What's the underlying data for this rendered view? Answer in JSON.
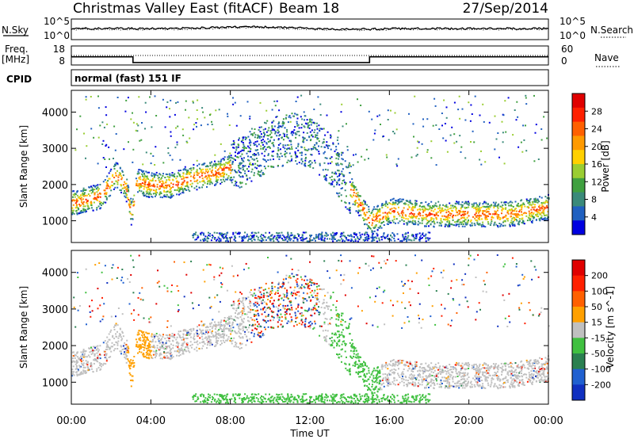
{
  "header": {
    "title": "Christmas Valley East (fitACF)",
    "beam": "Beam 18",
    "date": "27/Sep/2014"
  },
  "nsky_panel": {
    "left_label": "N.Sky",
    "right_label": "N.Search",
    "left_ticks": [
      "10^5",
      "10^0"
    ],
    "right_ticks": [
      "10^5",
      "10^0"
    ]
  },
  "freq_panel": {
    "left_label_1": "Freq.",
    "left_label_2": "[MHz]",
    "right_label": "Nave",
    "left_ticks": [
      "18",
      "8"
    ],
    "right_ticks": [
      "60",
      "0"
    ],
    "freq_mhz": [
      {
        "t": 0.0,
        "f": 12.3
      },
      {
        "t": 3.1,
        "f": 12.3
      },
      {
        "t": 3.1,
        "f": 9.3
      },
      {
        "t": 15.0,
        "f": 9.3
      },
      {
        "t": 15.0,
        "f": 12.3
      },
      {
        "t": 24.0,
        "f": 12.3
      }
    ]
  },
  "cpid": {
    "label": "CPID",
    "value": "normal (fast) 151 IF"
  },
  "chart_data": [
    {
      "type": "heatmap",
      "ylabel": "Slant Range [km]",
      "y_ticks": [
        "1000",
        "2000",
        "3000",
        "4000"
      ],
      "ylim": [
        400,
        4600
      ],
      "xlim": [
        0,
        24
      ],
      "colorbar": {
        "label": "Power [dB]",
        "ticks": [
          "4",
          "8",
          "12",
          "16",
          "20",
          "24",
          "28"
        ],
        "colors": [
          "#0000e0",
          "#2060c0",
          "#3a8a7a",
          "#40a040",
          "#9acd32",
          "#ffd000",
          "#ff9a00",
          "#ff6000",
          "#ff2000",
          "#e00000"
        ]
      }
    },
    {
      "type": "heatmap",
      "ylabel": "Slant Range [km]",
      "y_ticks": [
        "1000",
        "2000",
        "3000",
        "4000"
      ],
      "ylim": [
        400,
        4600
      ],
      "xlim": [
        0,
        24
      ],
      "colorbar": {
        "label": "Velocity [m s^-1]",
        "ticks": [
          "200",
          "100",
          "50",
          "15",
          "-15",
          "-50",
          "-100",
          "-200"
        ],
        "colors": [
          "#1030c0",
          "#2060d0",
          "#2a8050",
          "#40c040",
          "#c0c0c0",
          "#ffa000",
          "#ff6000",
          "#ff2000",
          "#e00000"
        ]
      },
      "xlabel": "Time UT",
      "x_ticks": [
        "00:00",
        "04:00",
        "08:00",
        "12:00",
        "16:00",
        "20:00",
        "00:00"
      ]
    }
  ]
}
